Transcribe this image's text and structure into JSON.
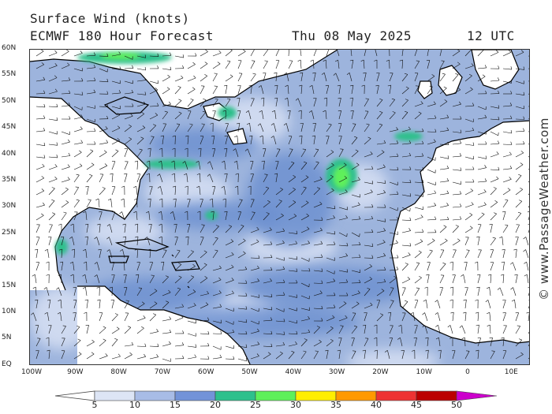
{
  "header": {
    "title": "Surface Wind (knots)",
    "subtitle": "ECMWF 180 Hour Forecast",
    "date": "Thu 08 May 2025",
    "time": "12 UTC"
  },
  "map": {
    "region": "North Atlantic",
    "lat_labels": [
      "60N",
      "55N",
      "50N",
      "45N",
      "40N",
      "35N",
      "30N",
      "25N",
      "20N",
      "15N",
      "10N",
      "5N",
      "EQ"
    ],
    "lon_labels": [
      "100W",
      "90W",
      "80W",
      "70W",
      "60W",
      "50W",
      "40W",
      "30W",
      "20W",
      "10W",
      "0",
      "10E"
    ],
    "colors": {
      "ocean_base": "#9db4dd",
      "ocean_calm": "#d7e1f3",
      "ocean_15": "#6b8fd0",
      "wind_25": "#2ec08c",
      "wind_30": "#5ef05a",
      "land": "#ffffff",
      "coast": "#000000"
    }
  },
  "legend": {
    "values": [
      "5",
      "10",
      "15",
      "20",
      "25",
      "30",
      "35",
      "40",
      "45",
      "50"
    ],
    "colors": [
      "#dde5f5",
      "#a8bce6",
      "#7393d8",
      "#2ec08c",
      "#5ef05a",
      "#ffee00",
      "#ff9900",
      "#ee3333",
      "#bb0000",
      "#cc00cc"
    ]
  },
  "watermark": "© www.PassageWeather.com"
}
